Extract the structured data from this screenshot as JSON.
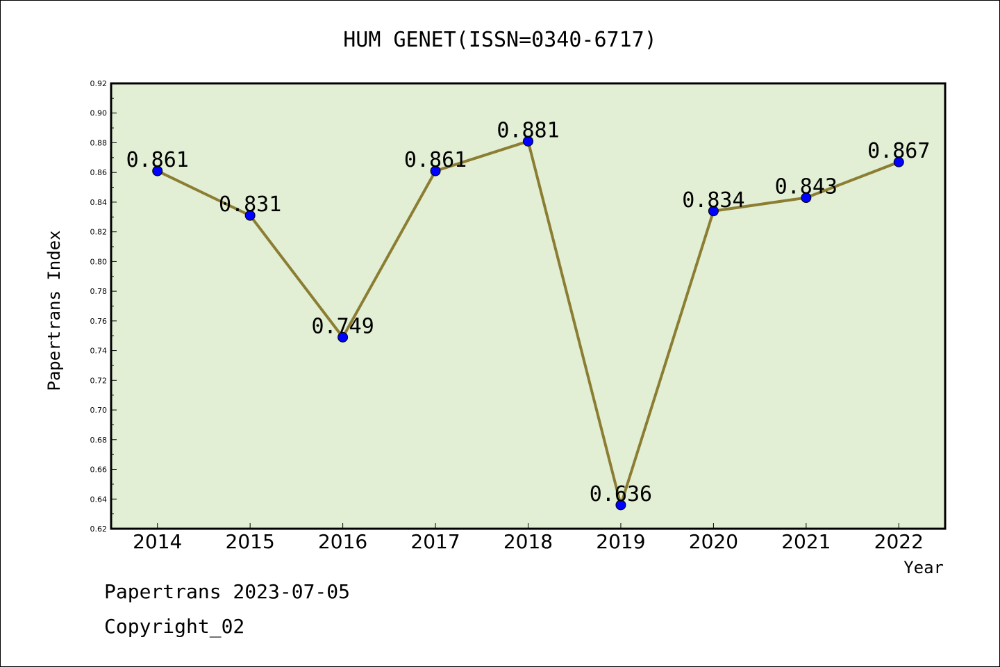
{
  "chart_data": {
    "type": "line",
    "title": "HUM GENET(ISSN=0340-6717)",
    "xlabel": "Year",
    "ylabel": "Papertrans Index",
    "categories": [
      "2014",
      "2015",
      "2016",
      "2017",
      "2018",
      "2019",
      "2020",
      "2021",
      "2022"
    ],
    "values": [
      0.861,
      0.831,
      0.749,
      0.861,
      0.881,
      0.636,
      0.834,
      0.843,
      0.867
    ],
    "data_labels": [
      "0.861",
      "0.831",
      "0.749",
      "0.861",
      "0.881",
      "0.636",
      "0.834",
      "0.843",
      "0.867"
    ],
    "ylim": [
      0.62,
      0.92
    ],
    "yticks": [
      "0.62",
      "0.64",
      "0.66",
      "0.68",
      "0.70",
      "0.72",
      "0.74",
      "0.76",
      "0.78",
      "0.80",
      "0.82",
      "0.84",
      "0.86",
      "0.88",
      "0.90",
      "0.92"
    ],
    "grid": false,
    "colors": {
      "line": "#8B7D32",
      "marker": "#0000FF",
      "plot_background": "#E2EFD5"
    }
  },
  "footer": {
    "line1": "Papertrans 2023-07-05",
    "line2": "Copyright_02"
  }
}
